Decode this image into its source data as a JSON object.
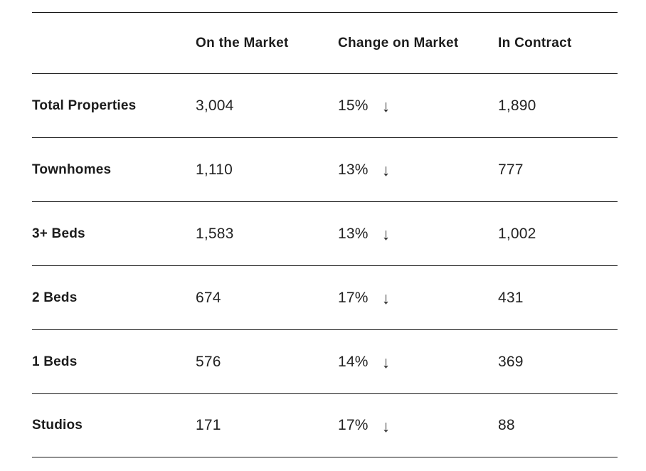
{
  "table": {
    "columns": [
      {
        "label": "On the Market"
      },
      {
        "label": "Change on Market"
      },
      {
        "label": "In Contract"
      }
    ],
    "rows": [
      {
        "label": "Total Properties",
        "on_market": "3,004",
        "change_pct": "15%",
        "change_direction": "down",
        "in_contract": "1,890"
      },
      {
        "label": "Townhomes",
        "on_market": "1,110",
        "change_pct": "13%",
        "change_direction": "down",
        "in_contract": "777"
      },
      {
        "label": "3+ Beds",
        "on_market": "1,583",
        "change_pct": "13%",
        "change_direction": "down",
        "in_contract": "1,002"
      },
      {
        "label": "2 Beds",
        "on_market": "674",
        "change_pct": "17%",
        "change_direction": "down",
        "in_contract": "431"
      },
      {
        "label": "1 Beds",
        "on_market": "576",
        "change_pct": "14%",
        "change_direction": "down",
        "in_contract": "369"
      },
      {
        "label": "Studios",
        "on_market": "171",
        "change_pct": "17%",
        "change_direction": "down",
        "in_contract": "88"
      }
    ],
    "icons": {
      "down_arrow": "↓"
    },
    "colors": {
      "text": "#1d1d1d",
      "rule": "#141414",
      "background": "#ffffff"
    }
  }
}
